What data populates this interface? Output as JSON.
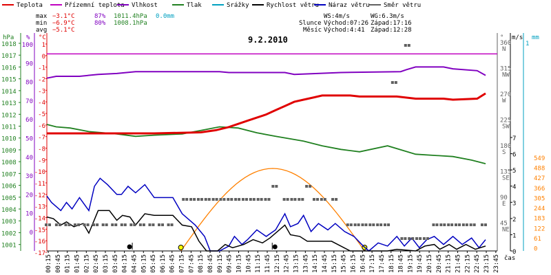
{
  "chart_data": {
    "type": "line",
    "title": "9.2.2010",
    "legend": [
      {
        "label": "Teplota",
        "color": "#e00000"
      },
      {
        "label": "Přízemní teplota",
        "color": "#c000c0"
      },
      {
        "label": "Vlhkost",
        "color": "#8000c0"
      },
      {
        "label": "Tlak",
        "color": "#208020"
      },
      {
        "label": "Srážky",
        "color": "#00a0c0"
      },
      {
        "label": "Rychlost větru",
        "color": "#000000"
      },
      {
        "label": "Náraz větru",
        "color": "#0000c0"
      },
      {
        "label": "Směr větru",
        "color": "#606060"
      }
    ],
    "stats": {
      "max": {
        "label": "max",
        "temp": "−3.1°C",
        "hum": "87%",
        "press": "1011.4hPa",
        "rain": "0.0mm"
      },
      "min": {
        "label": "min",
        "temp": "−6.9°C",
        "hum": "80%",
        "press": "1008.1hPa"
      },
      "avg": {
        "label": "avg",
        "temp": "−5.1°C"
      }
    },
    "wind_info": {
      "ws": "WS:4m/s",
      "wg": "WG:6.3m/s"
    },
    "sun_info": {
      "label": "Slunce",
      "rise": "Východ:07:26",
      "set": "Západ:17:16"
    },
    "moon_info": {
      "label": "Měsíc",
      "rise": "Východ:4:41",
      "set": "Západ:12:28"
    },
    "axis_units": {
      "hpa": "hPa",
      "pct": "%",
      "degc": "°C",
      "deg": "°",
      "ms": "m/s",
      "mm": "mm",
      "time": "čas"
    },
    "hpa_ticks": [
      "1018",
      "1017",
      "1016",
      "1015",
      "1014",
      "1013",
      "1012",
      "1011",
      "1010",
      "1009",
      "1008",
      "1007",
      "1006",
      "1005",
      "1004",
      "1003",
      "1002",
      "1001"
    ],
    "pct_ticks": [
      "100",
      "90",
      "80",
      "70",
      "60",
      "50",
      "40",
      "30",
      "20",
      "10",
      "0"
    ],
    "temp_ticks": [
      "1",
      "0",
      "-1",
      "-2",
      "-3",
      "-4",
      "-5",
      "-6",
      "-7",
      "-8",
      "-9",
      "-10",
      "-11",
      "-12",
      "-13",
      "-14",
      "-15",
      "-16",
      "-17"
    ],
    "dir_ticks": [
      {
        "deg": "360",
        "dir": "N"
      },
      {
        "deg": "315",
        "dir": "NW"
      },
      {
        "deg": "270",
        "dir": "W"
      },
      {
        "deg": "225",
        "dir": "SW"
      },
      {
        "deg": "180",
        "dir": "S"
      },
      {
        "deg": "135",
        "dir": "SE"
      },
      {
        "deg": "90",
        "dir": "E"
      },
      {
        "deg": "45",
        "dir": "NE"
      }
    ],
    "ms_ticks": [
      "7",
      "6",
      "5",
      "4",
      "3",
      "2",
      "1",
      "0"
    ],
    "ms_top": "1",
    "mm_ticks": [
      "549",
      "488",
      "427",
      "366",
      "305",
      "244",
      "183",
      "122",
      "61",
      "0"
    ],
    "x_labels": [
      "00:15",
      "00:45",
      "01:15",
      "01:45",
      "02:15",
      "02:45",
      "03:15",
      "03:45",
      "04:15",
      "04:45",
      "05:15",
      "05:45",
      "06:15",
      "06:45",
      "07:15",
      "07:45",
      "08:15",
      "08:45",
      "09:15",
      "09:45",
      "10:15",
      "10:45",
      "11:15",
      "11:45",
      "12:15",
      "12:45",
      "13:15",
      "13:45",
      "14:15",
      "14:45",
      "15:15",
      "15:45",
      "16:15",
      "16:45",
      "17:15",
      "17:45",
      "18:15",
      "18:45",
      "19:15",
      "19:45",
      "20:15",
      "20:45",
      "21:15",
      "21:45",
      "22:15",
      "22:45",
      "23:15",
      "23:45"
    ],
    "ground_temp_c": 0,
    "series_temperature": [
      {
        "t": 0.25,
        "v": -6.9
      },
      {
        "t": 6.0,
        "v": -6.9
      },
      {
        "t": 8.5,
        "v": -6.8
      },
      {
        "t": 9.3,
        "v": -6.6
      },
      {
        "t": 10.0,
        "v": -6.3
      },
      {
        "t": 10.5,
        "v": -6.0
      },
      {
        "t": 11.0,
        "v": -5.7
      },
      {
        "t": 11.5,
        "v": -5.4
      },
      {
        "t": 12.0,
        "v": -5.1
      },
      {
        "t": 12.5,
        "v": -4.7
      },
      {
        "t": 13.0,
        "v": -4.3
      },
      {
        "t": 13.5,
        "v": -3.9
      },
      {
        "t": 14.0,
        "v": -3.7
      },
      {
        "t": 14.5,
        "v": -3.5
      },
      {
        "t": 15.0,
        "v": -3.3
      },
      {
        "t": 16.5,
        "v": -3.3
      },
      {
        "t": 17.0,
        "v": -3.4
      },
      {
        "t": 19.0,
        "v": -3.4
      },
      {
        "t": 20.0,
        "v": -3.6
      },
      {
        "t": 21.5,
        "v": -3.6
      },
      {
        "t": 22.0,
        "v": -3.7
      },
      {
        "t": 23.3,
        "v": -3.6
      },
      {
        "t": 23.75,
        "v": -3.1
      }
    ],
    "series_humidity": [
      {
        "t": 0.25,
        "v": 81
      },
      {
        "t": 0.75,
        "v": 82
      },
      {
        "t": 2.0,
        "v": 82
      },
      {
        "t": 3.0,
        "v": 83
      },
      {
        "t": 4.0,
        "v": 83.5
      },
      {
        "t": 5.0,
        "v": 84.5
      },
      {
        "t": 9.5,
        "v": 84.5
      },
      {
        "t": 10.0,
        "v": 84
      },
      {
        "t": 13.0,
        "v": 84
      },
      {
        "t": 13.5,
        "v": 83
      },
      {
        "t": 16.0,
        "v": 84
      },
      {
        "t": 19.2,
        "v": 84.5
      },
      {
        "t": 19.5,
        "v": 85.5
      },
      {
        "t": 20.0,
        "v": 87
      },
      {
        "t": 21.5,
        "v": 87
      },
      {
        "t": 22.0,
        "v": 86
      },
      {
        "t": 23.3,
        "v": 85
      },
      {
        "t": 23.75,
        "v": 82.5
      }
    ],
    "series_pressure": [
      {
        "t": 0.25,
        "v": 1011.4
      },
      {
        "t": 0.75,
        "v": 1011.2
      },
      {
        "t": 1.5,
        "v": 1011.1
      },
      {
        "t": 2.5,
        "v": 1010.8
      },
      {
        "t": 4.0,
        "v": 1010.6
      },
      {
        "t": 5.0,
        "v": 1010.4
      },
      {
        "t": 6.0,
        "v": 1010.5
      },
      {
        "t": 7.5,
        "v": 1010.6
      },
      {
        "t": 8.5,
        "v": 1010.9
      },
      {
        "t": 9.5,
        "v": 1011.2
      },
      {
        "t": 10.5,
        "v": 1011.1
      },
      {
        "t": 11.5,
        "v": 1010.7
      },
      {
        "t": 12.5,
        "v": 1010.4
      },
      {
        "t": 14.0,
        "v": 1010.0
      },
      {
        "t": 15.0,
        "v": 1009.6
      },
      {
        "t": 16.0,
        "v": 1009.3
      },
      {
        "t": 17.0,
        "v": 1009.1
      },
      {
        "t": 18.5,
        "v": 1009.6
      },
      {
        "t": 20.0,
        "v": 1008.9
      },
      {
        "t": 22.0,
        "v": 1008.7
      },
      {
        "t": 23.0,
        "v": 1008.4
      },
      {
        "t": 23.75,
        "v": 1008.1
      }
    ],
    "series_gust": [
      {
        "t": 0.25,
        "v": 3.4
      },
      {
        "t": 0.5,
        "v": 3.0
      },
      {
        "t": 1.0,
        "v": 2.5
      },
      {
        "t": 1.3,
        "v": 3.0
      },
      {
        "t": 1.6,
        "v": 2.6
      },
      {
        "t": 2.0,
        "v": 3.3
      },
      {
        "t": 2.5,
        "v": 2.5
      },
      {
        "t": 2.8,
        "v": 4.0
      },
      {
        "t": 3.1,
        "v": 4.5
      },
      {
        "t": 3.5,
        "v": 4.1
      },
      {
        "t": 4.0,
        "v": 3.5
      },
      {
        "t": 4.25,
        "v": 3.5
      },
      {
        "t": 4.6,
        "v": 4.0
      },
      {
        "t": 5.0,
        "v": 3.6
      },
      {
        "t": 5.5,
        "v": 4.1
      },
      {
        "t": 6.0,
        "v": 3.3
      },
      {
        "t": 6.5,
        "v": 3.3
      },
      {
        "t": 7.0,
        "v": 3.3
      },
      {
        "t": 7.5,
        "v": 2.3
      },
      {
        "t": 8.2,
        "v": 1.6
      },
      {
        "t": 8.7,
        "v": 0.9
      },
      {
        "t": 9.0,
        "v": 0.0
      },
      {
        "t": 9.5,
        "v": 0.0
      },
      {
        "t": 10.0,
        "v": 0.3
      },
      {
        "t": 10.3,
        "v": 0.9
      },
      {
        "t": 10.7,
        "v": 0.4
      },
      {
        "t": 11.0,
        "v": 0.7
      },
      {
        "t": 11.5,
        "v": 1.3
      },
      {
        "t": 12.0,
        "v": 0.9
      },
      {
        "t": 12.5,
        "v": 1.3
      },
      {
        "t": 13.0,
        "v": 2.3
      },
      {
        "t": 13.3,
        "v": 1.5
      },
      {
        "t": 13.7,
        "v": 1.7
      },
      {
        "t": 14.0,
        "v": 2.2
      },
      {
        "t": 14.4,
        "v": 1.2
      },
      {
        "t": 14.8,
        "v": 1.7
      },
      {
        "t": 15.3,
        "v": 1.3
      },
      {
        "t": 15.7,
        "v": 1.7
      },
      {
        "t": 16.2,
        "v": 1.2
      },
      {
        "t": 16.7,
        "v": 0.9
      },
      {
        "t": 17.2,
        "v": 0.3
      },
      {
        "t": 17.5,
        "v": 0.0
      },
      {
        "t": 18.0,
        "v": 0.5
      },
      {
        "t": 18.5,
        "v": 0.3
      },
      {
        "t": 19.0,
        "v": 0.9
      },
      {
        "t": 19.4,
        "v": 0.3
      },
      {
        "t": 19.8,
        "v": 0.8
      },
      {
        "t": 20.2,
        "v": 0.2
      },
      {
        "t": 20.6,
        "v": 0.7
      },
      {
        "t": 21.0,
        "v": 0.9
      },
      {
        "t": 21.5,
        "v": 0.4
      },
      {
        "t": 22.0,
        "v": 0.9
      },
      {
        "t": 22.5,
        "v": 0.4
      },
      {
        "t": 23.0,
        "v": 0.8
      },
      {
        "t": 23.4,
        "v": 0.2
      },
      {
        "t": 23.75,
        "v": 0.7
      }
    ],
    "series_speed": [
      {
        "t": 0.25,
        "v": 2.1
      },
      {
        "t": 0.6,
        "v": 2.0
      },
      {
        "t": 1.0,
        "v": 1.6
      },
      {
        "t": 1.3,
        "v": 1.8
      },
      {
        "t": 1.7,
        "v": 1.5
      },
      {
        "t": 2.2,
        "v": 1.7
      },
      {
        "t": 2.5,
        "v": 1.1
      },
      {
        "t": 3.0,
        "v": 2.5
      },
      {
        "t": 3.6,
        "v": 2.5
      },
      {
        "t": 4.0,
        "v": 1.9
      },
      {
        "t": 4.3,
        "v": 2.2
      },
      {
        "t": 4.7,
        "v": 2.1
      },
      {
        "t": 5.0,
        "v": 1.6
      },
      {
        "t": 5.5,
        "v": 2.3
      },
      {
        "t": 6.0,
        "v": 2.2
      },
      {
        "t": 6.5,
        "v": 2.2
      },
      {
        "t": 7.0,
        "v": 2.2
      },
      {
        "t": 7.5,
        "v": 1.6
      },
      {
        "t": 8.0,
        "v": 1.5
      },
      {
        "t": 8.4,
        "v": 0.6
      },
      {
        "t": 8.8,
        "v": 0.0
      },
      {
        "t": 9.4,
        "v": 0.0
      },
      {
        "t": 9.8,
        "v": 0.4
      },
      {
        "t": 10.2,
        "v": 0.2
      },
      {
        "t": 10.8,
        "v": 0.4
      },
      {
        "t": 11.3,
        "v": 0.7
      },
      {
        "t": 11.8,
        "v": 0.5
      },
      {
        "t": 12.2,
        "v": 0.8
      },
      {
        "t": 12.7,
        "v": 1.3
      },
      {
        "t": 13.0,
        "v": 1.6
      },
      {
        "t": 13.3,
        "v": 1.0
      },
      {
        "t": 13.8,
        "v": 0.9
      },
      {
        "t": 14.2,
        "v": 0.6
      },
      {
        "t": 14.6,
        "v": 0.6
      },
      {
        "t": 15.0,
        "v": 0.6
      },
      {
        "t": 15.5,
        "v": 0.6
      },
      {
        "t": 16.0,
        "v": 0.3
      },
      {
        "t": 16.5,
        "v": 0.0
      },
      {
        "t": 18.5,
        "v": 0.0
      },
      {
        "t": 19.0,
        "v": 0.1
      },
      {
        "t": 20.0,
        "v": 0.0
      },
      {
        "t": 20.5,
        "v": 0.3
      },
      {
        "t": 21.0,
        "v": 0.4
      },
      {
        "t": 21.3,
        "v": 0.1
      },
      {
        "t": 21.8,
        "v": 0.4
      },
      {
        "t": 22.2,
        "v": 0.1
      },
      {
        "t": 22.7,
        "v": 0.4
      },
      {
        "t": 23.2,
        "v": 0.1
      },
      {
        "t": 23.75,
        "v": 0.3
      }
    ],
    "series_direction": [
      {
        "t": 0.25,
        "v": 45
      },
      {
        "t": 0.8,
        "v": 45
      },
      {
        "t": 1.3,
        "v": 45
      },
      {
        "t": 1.8,
        "v": 45
      },
      {
        "t": 2.3,
        "v": 45
      },
      {
        "t": 2.8,
        "v": 45
      },
      {
        "t": 3.3,
        "v": 45
      },
      {
        "t": 3.8,
        "v": 45
      },
      {
        "t": 4.3,
        "v": 45
      },
      {
        "t": 4.8,
        "v": 45
      },
      {
        "t": 5.3,
        "v": 45
      },
      {
        "t": 5.8,
        "v": 45
      },
      {
        "t": 6.3,
        "v": 45
      },
      {
        "t": 6.8,
        "v": 45
      },
      {
        "t": 7.6,
        "v": 90
      },
      {
        "t": 8.0,
        "v": 90
      },
      {
        "t": 8.4,
        "v": 90
      },
      {
        "t": 8.8,
        "v": 90
      },
      {
        "t": 9.2,
        "v": 90
      },
      {
        "t": 9.6,
        "v": 90
      },
      {
        "t": 10.0,
        "v": 90
      },
      {
        "t": 10.4,
        "v": 90
      },
      {
        "t": 10.8,
        "v": 90
      },
      {
        "t": 11.2,
        "v": 90
      },
      {
        "t": 11.6,
        "v": 90
      },
      {
        "t": 12.0,
        "v": 90
      },
      {
        "t": 12.4,
        "v": 112
      },
      {
        "t": 13.0,
        "v": 90
      },
      {
        "t": 13.4,
        "v": 90
      },
      {
        "t": 13.8,
        "v": 90
      },
      {
        "t": 14.2,
        "v": 112
      },
      {
        "t": 14.6,
        "v": 90
      },
      {
        "t": 15.0,
        "v": 90
      },
      {
        "t": 15.6,
        "v": 90
      },
      {
        "t": 16.4,
        "v": 45
      },
      {
        "t": 16.8,
        "v": 45
      },
      {
        "t": 17.2,
        "v": 45
      },
      {
        "t": 17.6,
        "v": 45
      },
      {
        "t": 18.0,
        "v": 45
      },
      {
        "t": 18.4,
        "v": 45
      },
      {
        "t": 18.8,
        "v": 292
      },
      {
        "t": 19.3,
        "v": 22
      },
      {
        "t": 19.7,
        "v": 22
      },
      {
        "t": 20.1,
        "v": 22
      },
      {
        "t": 20.5,
        "v": 22
      },
      {
        "t": 19.5,
        "v": 337
      },
      {
        "t": 21.0,
        "v": 45
      },
      {
        "t": 21.4,
        "v": 45
      },
      {
        "t": 21.8,
        "v": 45
      },
      {
        "t": 22.2,
        "v": 45
      },
      {
        "t": 22.6,
        "v": 45
      },
      {
        "t": 23.0,
        "v": 45
      },
      {
        "t": 23.6,
        "v": 45
      }
    ],
    "sun_arc": {
      "rise": 7.43,
      "set": 17.27,
      "peak_deg": 5.9
    }
  }
}
